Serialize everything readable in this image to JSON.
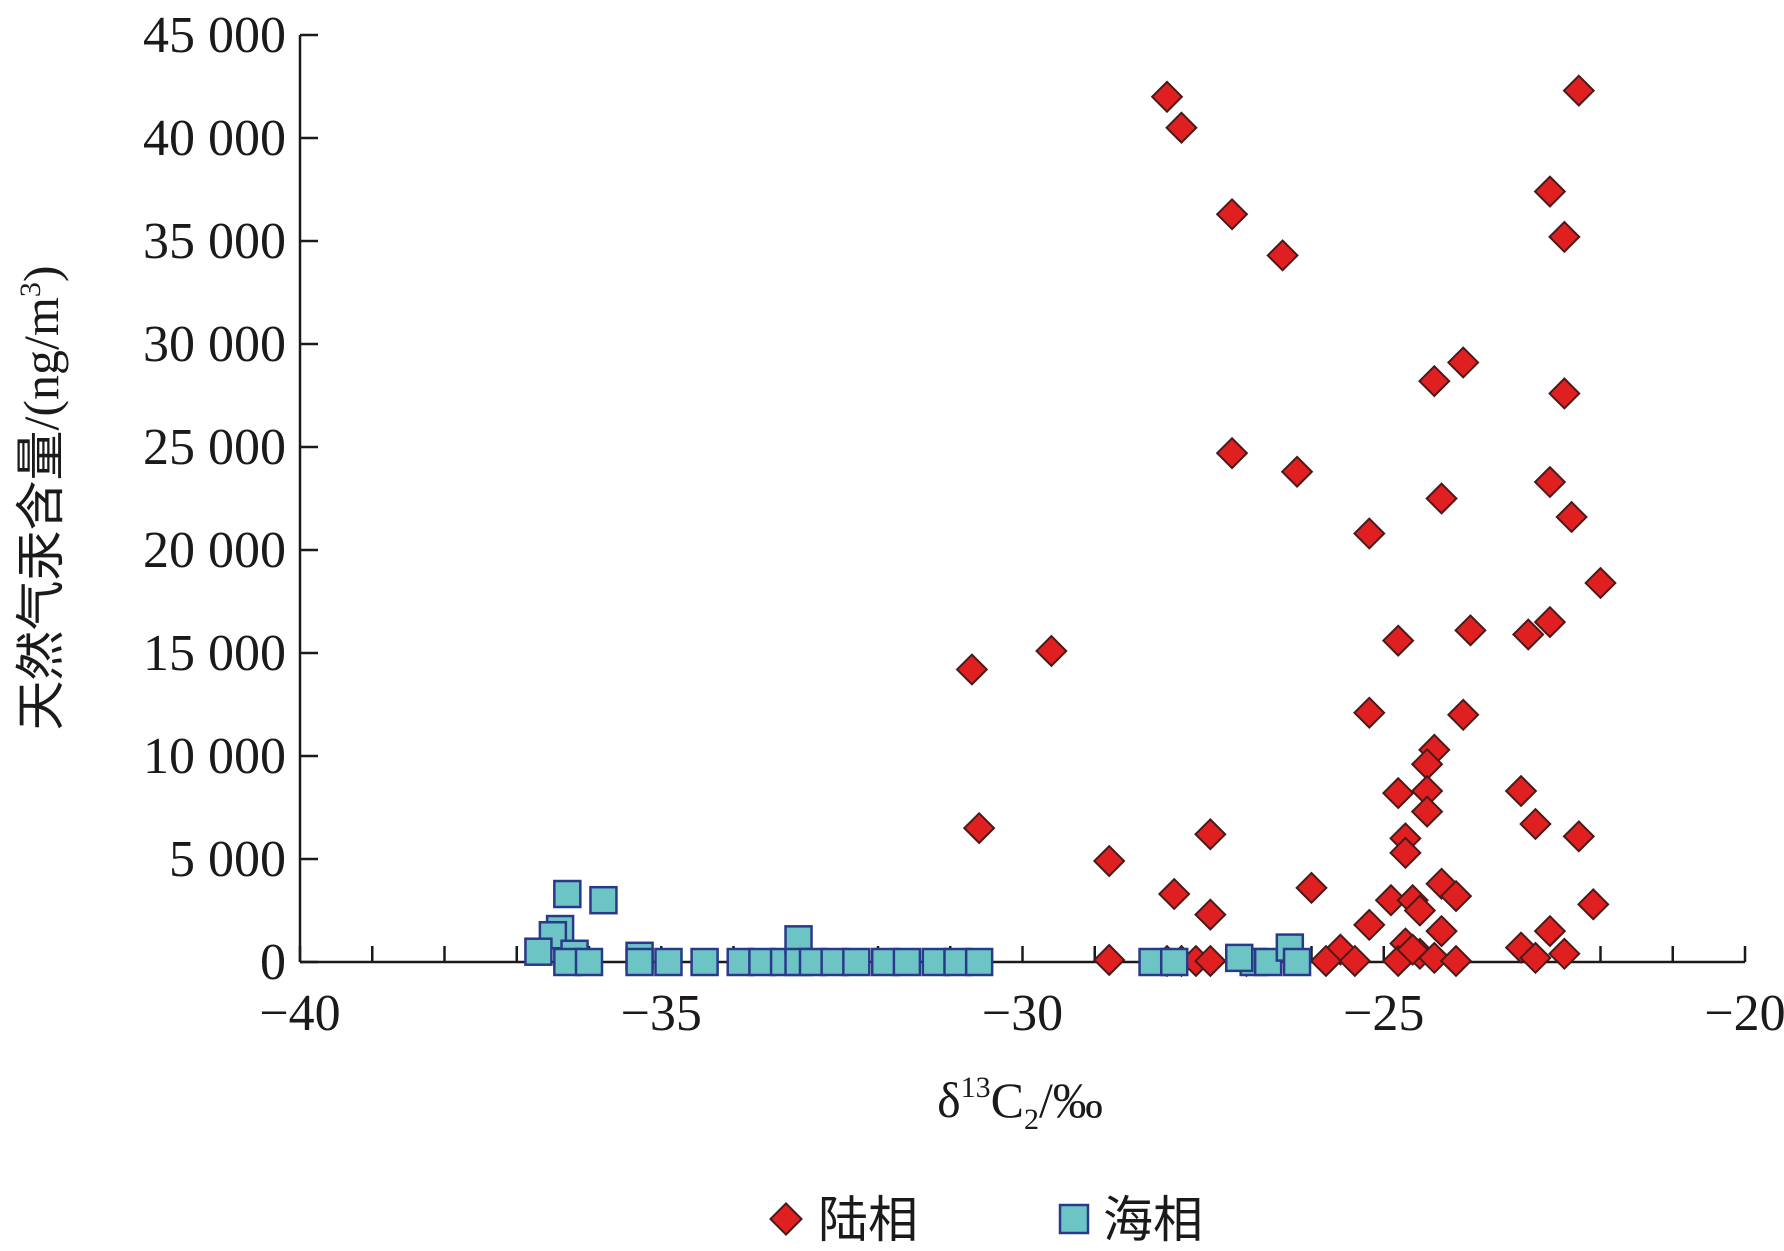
{
  "chart_data": {
    "type": "scatter",
    "title": "",
    "xlabel": {
      "main": "δ",
      "sup": "13",
      "base": "C",
      "sub": "2",
      "unit": "/‰"
    },
    "ylabel": {
      "main": "天然气汞含量/(ng/m",
      "sup": "3",
      "end": ")"
    },
    "xlim": [
      -40,
      -20
    ],
    "ylim": [
      0,
      45000
    ],
    "x_ticks": [
      -40,
      -35,
      -30,
      -25,
      -20
    ],
    "x_tick_labels": [
      "−40",
      "−35",
      "−30",
      "−25",
      "−20"
    ],
    "y_ticks": [
      0,
      5000,
      10000,
      15000,
      20000,
      25000,
      30000,
      35000,
      40000,
      45000
    ],
    "y_tick_labels": [
      "0",
      "5 000",
      "10 000",
      "15 000",
      "20 000",
      "25 000",
      "30 000",
      "35 000",
      "40 000",
      "45 000"
    ],
    "grid": false,
    "legend_position": "bottom-center",
    "series": [
      {
        "name": "陆相",
        "marker": "diamond",
        "color": "#e02020",
        "stroke": "#4a1a1a",
        "points": [
          [
            -28,
            42000
          ],
          [
            -27.8,
            40500
          ],
          [
            -27.1,
            36300
          ],
          [
            -26.4,
            34300
          ],
          [
            -27.1,
            24700
          ],
          [
            -26.2,
            23800
          ],
          [
            -25.2,
            20800
          ],
          [
            -24.8,
            15600
          ],
          [
            -25.2,
            12100
          ],
          [
            -24.8,
            8200
          ],
          [
            -22.3,
            42300
          ],
          [
            -22.7,
            37400
          ],
          [
            -22.5,
            35200
          ],
          [
            -23.9,
            29100
          ],
          [
            -24.3,
            28200
          ],
          [
            -22.5,
            27600
          ],
          [
            -24.2,
            22500
          ],
          [
            -22.7,
            23300
          ],
          [
            -22.4,
            21600
          ],
          [
            -22.0,
            18400
          ],
          [
            -23.8,
            16100
          ],
          [
            -23.0,
            15900
          ],
          [
            -22.7,
            16500
          ],
          [
            -23.9,
            12000
          ],
          [
            -24.3,
            10300
          ],
          [
            -24.4,
            9600
          ],
          [
            -24.4,
            8300
          ],
          [
            -24.4,
            7300
          ],
          [
            -24.7,
            6000
          ],
          [
            -24.7,
            5300
          ],
          [
            -23.1,
            8300
          ],
          [
            -22.9,
            6700
          ],
          [
            -22.3,
            6100
          ],
          [
            -22.1,
            2800
          ],
          [
            -30.7,
            14200
          ],
          [
            -29.6,
            15100
          ],
          [
            -30.6,
            6500
          ],
          [
            -28.8,
            4900
          ],
          [
            -27.4,
            6200
          ],
          [
            -26.0,
            3600
          ],
          [
            -27.9,
            3300
          ],
          [
            -27.4,
            2300
          ],
          [
            -24.9,
            3000
          ],
          [
            -24.6,
            3000
          ],
          [
            -24.5,
            2500
          ],
          [
            -24.2,
            3800
          ],
          [
            -24.0,
            3200
          ],
          [
            -25.2,
            1800
          ],
          [
            -24.2,
            1500
          ],
          [
            -22.7,
            1500
          ],
          [
            -23.1,
            700
          ],
          [
            -24.7,
            900
          ],
          [
            -25.6,
            600
          ],
          [
            -25.8,
            50
          ],
          [
            -25.4,
            50
          ],
          [
            -24.8,
            50
          ],
          [
            -24.5,
            400
          ],
          [
            -24.3,
            200
          ],
          [
            -24.0,
            50
          ],
          [
            -22.9,
            200
          ],
          [
            -22.5,
            400
          ],
          [
            -28.8,
            100
          ],
          [
            -28.0,
            50
          ],
          [
            -27.8,
            50
          ],
          [
            -27.6,
            50
          ],
          [
            -27.4,
            50
          ],
          [
            -26.9,
            50
          ],
          [
            -24.6,
            600
          ]
        ]
      },
      {
        "name": "海相",
        "marker": "square",
        "color": "#6cc4c4",
        "stroke": "#2a3a8a",
        "points": [
          [
            -36.3,
            3300
          ],
          [
            -35.8,
            3000
          ],
          [
            -36.4,
            1600
          ],
          [
            -36.5,
            1300
          ],
          [
            -36.7,
            500
          ],
          [
            -36.2,
            400
          ],
          [
            -36.3,
            0
          ],
          [
            -36.0,
            0
          ],
          [
            -35.3,
            300
          ],
          [
            -35.3,
            0
          ],
          [
            -34.9,
            0
          ],
          [
            -34.4,
            0
          ],
          [
            -33.9,
            0
          ],
          [
            -33.6,
            0
          ],
          [
            -33.3,
            0
          ],
          [
            -33.1,
            1100
          ],
          [
            -33.1,
            0
          ],
          [
            -32.9,
            0
          ],
          [
            -32.6,
            0
          ],
          [
            -32.3,
            0
          ],
          [
            -31.9,
            0
          ],
          [
            -31.6,
            0
          ],
          [
            -31.2,
            0
          ],
          [
            -30.9,
            0
          ],
          [
            -30.6,
            0
          ],
          [
            -28.2,
            0
          ],
          [
            -27.9,
            0
          ],
          [
            -26.8,
            0
          ],
          [
            -26.6,
            0
          ],
          [
            -26.3,
            700
          ],
          [
            -26.2,
            0
          ],
          [
            -27.0,
            200
          ]
        ]
      }
    ]
  },
  "legend": {
    "items": [
      {
        "label": "陆相"
      },
      {
        "label": "海相"
      }
    ]
  }
}
